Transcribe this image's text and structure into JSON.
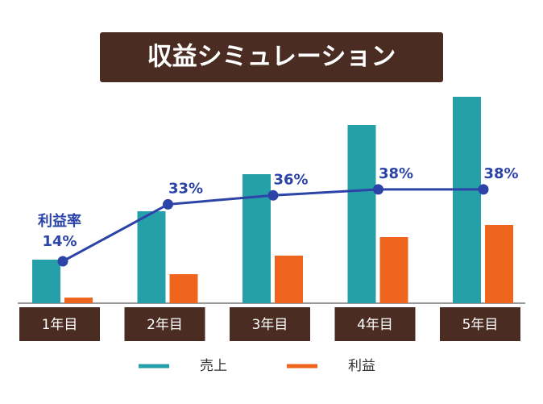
{
  "chart_data": {
    "type": "bar",
    "title": "収益シミュレーション",
    "categories": [
      "1年目",
      "2年目",
      "3年目",
      "4年目",
      "5年目"
    ],
    "series": [
      {
        "name": "売上",
        "color": "#26a0a8",
        "values": [
          54,
          114,
          160,
          221,
          256
        ]
      },
      {
        "name": "利益",
        "color": "#f0651e",
        "values": [
          7,
          36,
          59,
          82,
          97
        ]
      },
      {
        "name": "利益率",
        "type": "line",
        "axis": "y2",
        "color": "#2c44a8",
        "values": [
          14,
          33,
          36,
          38,
          38
        ],
        "value_labels": [
          "14%",
          "33%",
          "36%",
          "38%",
          "38%"
        ]
      }
    ],
    "ylim": [
      0,
      260
    ],
    "y2lim": [
      0,
      70
    ],
    "grid": false,
    "legend": "bottom"
  }
}
